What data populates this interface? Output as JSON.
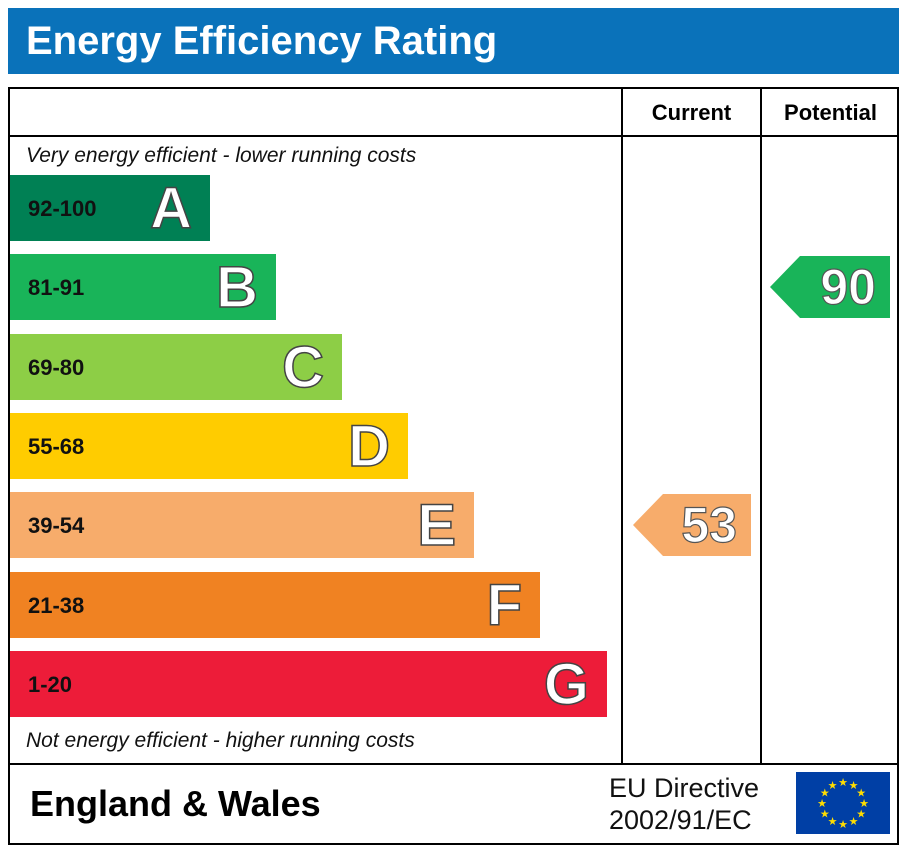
{
  "title": "Energy Efficiency Rating",
  "columns": {
    "current": "Current",
    "potential": "Potential"
  },
  "notes": {
    "top": "Very energy efficient - lower running costs",
    "bottom": "Not energy efficient - higher running costs"
  },
  "chart_data": {
    "type": "bar",
    "bands": [
      {
        "letter": "A",
        "range": "92-100",
        "color": "#008054"
      },
      {
        "letter": "B",
        "range": "81-91",
        "color": "#19b459"
      },
      {
        "letter": "C",
        "range": "69-80",
        "color": "#8dce46"
      },
      {
        "letter": "D",
        "range": "55-68",
        "color": "#ffcc00"
      },
      {
        "letter": "E",
        "range": "39-54",
        "color": "#f7ac6b"
      },
      {
        "letter": "F",
        "range": "21-38",
        "color": "#f08222"
      },
      {
        "letter": "G",
        "range": "1-20",
        "color": "#ed1c39"
      }
    ],
    "current": {
      "value": "53",
      "band": "E"
    },
    "potential": {
      "value": "90",
      "band": "B"
    }
  },
  "footer": {
    "region": "England & Wales",
    "directive_line1": "EU Directive",
    "directive_line2": "2002/91/EC",
    "flag_icon": "eu-flag-icon"
  },
  "colors": {
    "title_bar": "#0a72ba",
    "flag": "#003fa5",
    "stars": "#ffdd00"
  }
}
